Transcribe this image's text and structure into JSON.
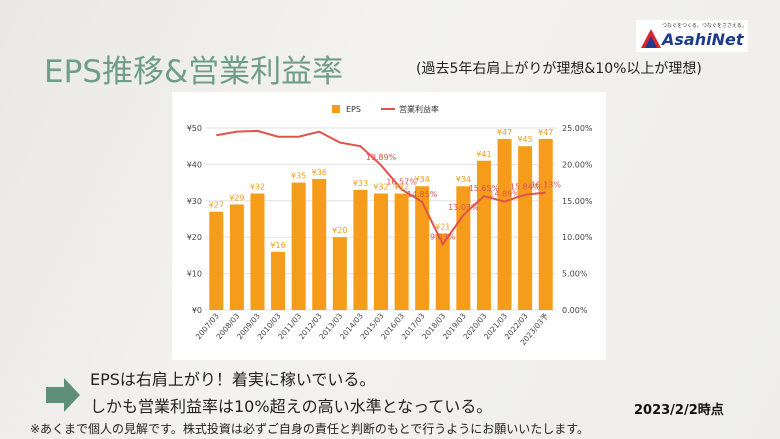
{
  "header": {
    "title": "EPS推移&営業利益率",
    "subtitle": "(過去5年右肩上がりが理想&10%以上が理想)",
    "logo_tagline": "つなぐをつくる。つなぐをささえる。",
    "logo": "AsahiNet"
  },
  "comments": [
    "EPSは右肩上がり！着実に稼いでいる。",
    "しかも営業利益率は10%超えの高い水準となっている。"
  ],
  "date": "2023/2/2時点",
  "footer": "※あくまで個人の見解です。株式投資は必ずご自身の責任と判断のもとで行うようにお願いいたします。",
  "chart_data": {
    "type": "bar",
    "legend": "top",
    "grid": true,
    "categories": [
      "2007/03",
      "2008/03",
      "2009/03",
      "2010/03",
      "2011/03",
      "2012/03",
      "2013/03",
      "2014/03",
      "2015/03",
      "2016/03",
      "2017/03",
      "2018/03",
      "2019/03",
      "2020/03",
      "2021/03",
      "2022/03",
      "2023/03予"
    ],
    "series": [
      {
        "name": "EPS",
        "type": "bar",
        "color": "#f59c1a",
        "values": [
          27,
          29,
          32,
          16,
          35,
          36,
          20,
          33,
          32,
          32,
          34,
          21,
          34,
          41,
          47,
          45,
          47
        ],
        "value_labels": [
          "¥27",
          "¥29",
          "¥32",
          "¥16",
          "¥35",
          "¥36",
          "¥20",
          "¥33",
          "¥32",
          "¥32",
          "¥34",
          "¥21",
          "¥34",
          "¥41",
          "¥47",
          "¥45",
          "¥47"
        ]
      },
      {
        "name": "営業利益率",
        "type": "line",
        "axis": "y2",
        "color": "#e0534a",
        "values": [
          24.0,
          24.5,
          24.6,
          23.8,
          23.8,
          24.5,
          23.0,
          22.5,
          19.89,
          16.57,
          14.85,
          9.03,
          13.03,
          15.65,
          14.89,
          15.84,
          16.13
        ],
        "value_labels": [
          null,
          null,
          null,
          null,
          null,
          null,
          null,
          null,
          "19.89%",
          "16.57%",
          "14.85%",
          "9.03%",
          "13.03%",
          "15.65%",
          "14.89%",
          "15.84%",
          "16.13%"
        ]
      }
    ],
    "ylim": [
      0,
      50
    ],
    "yticks": [
      {
        "value": 0,
        "label": "¥0"
      },
      {
        "value": 10,
        "label": "¥10"
      },
      {
        "value": 20,
        "label": "¥20"
      },
      {
        "value": 30,
        "label": "¥30"
      },
      {
        "value": 40,
        "label": "¥40"
      },
      {
        "value": 50,
        "label": "¥50"
      }
    ],
    "y2lim": [
      0,
      25
    ],
    "y2ticks": [
      {
        "value": 0,
        "label": "0.00%"
      },
      {
        "value": 5,
        "label": "5.00%"
      },
      {
        "value": 10,
        "label": "10.00%"
      },
      {
        "value": 15,
        "label": "15.00%"
      },
      {
        "value": 20,
        "label": "20.00%"
      },
      {
        "value": 25,
        "label": "25.00%"
      }
    ]
  }
}
